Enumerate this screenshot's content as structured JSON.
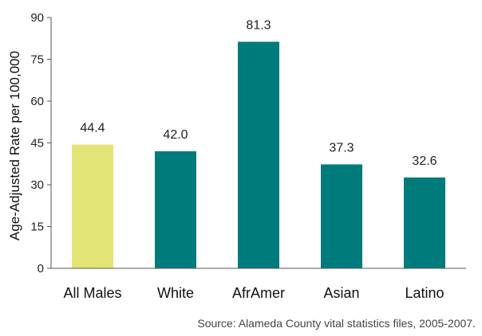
{
  "chart_data": {
    "type": "bar",
    "categories": [
      "All Males",
      "White",
      "AfrAmer",
      "Asian",
      "Latino"
    ],
    "values": [
      44.4,
      42.0,
      81.3,
      37.3,
      32.6
    ],
    "value_labels": [
      "44.4",
      "42.0",
      "81.3",
      "37.3",
      "32.6"
    ],
    "ylabel": "Age-Adjusted Rate per 100,000",
    "ylim": [
      0,
      90
    ],
    "yticks": [
      "0",
      "15",
      "30",
      "45",
      "60",
      "75",
      "90"
    ],
    "grid": false,
    "colors": [
      "#e3e476",
      "#007b7b",
      "#007b7b",
      "#007b7b",
      "#007b7b"
    ]
  },
  "source": "Source: Alameda County vital statistics files, 2005-2007."
}
